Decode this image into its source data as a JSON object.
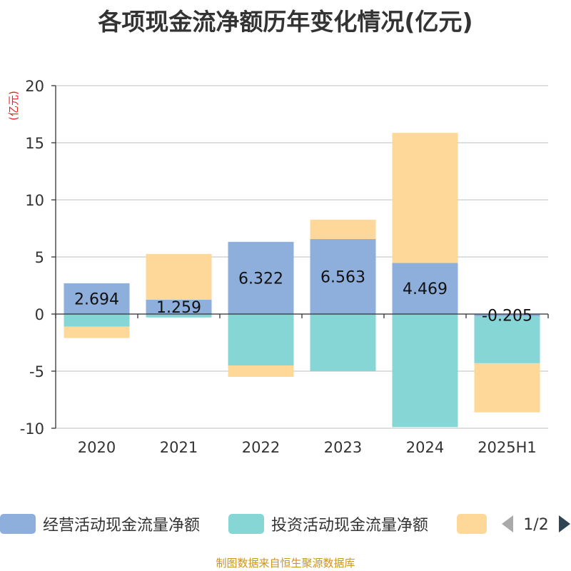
{
  "chart_data": {
    "type": "bar",
    "stacked": true,
    "title": "各项现金流净额历年变化情况(亿元)",
    "ylabel": "(亿元)",
    "categories": [
      "2020",
      "2021",
      "2022",
      "2023",
      "2024",
      "2025H1"
    ],
    "ylim": [
      -10,
      20
    ],
    "yticks": [
      20,
      15,
      10,
      5,
      0,
      -5,
      -10
    ],
    "grid": true,
    "series": [
      {
        "name": "经营活动现金流量净额",
        "color": "#8eaedb",
        "values": [
          2.694,
          1.259,
          6.322,
          6.563,
          4.469,
          -0.205
        ],
        "labels": [
          "2.694",
          "1.259",
          "6.322",
          "6.563",
          "4.469",
          "-0.205"
        ]
      },
      {
        "name": "投资活动现金流量净额",
        "color": "#86d6d6",
        "values": [
          -1.1,
          -0.3,
          -4.5,
          -5.0,
          -9.9,
          -4.1
        ]
      },
      {
        "name": "",
        "color": "#fed898",
        "values": [
          -1.0,
          4.0,
          -1.0,
          1.7,
          11.4,
          -4.3
        ]
      }
    ]
  },
  "legend": {
    "page": "1/2",
    "prev_icon": "triangle-left-icon",
    "next_icon": "triangle-right-icon"
  },
  "source": "制图数据来自恒生聚源数据库"
}
